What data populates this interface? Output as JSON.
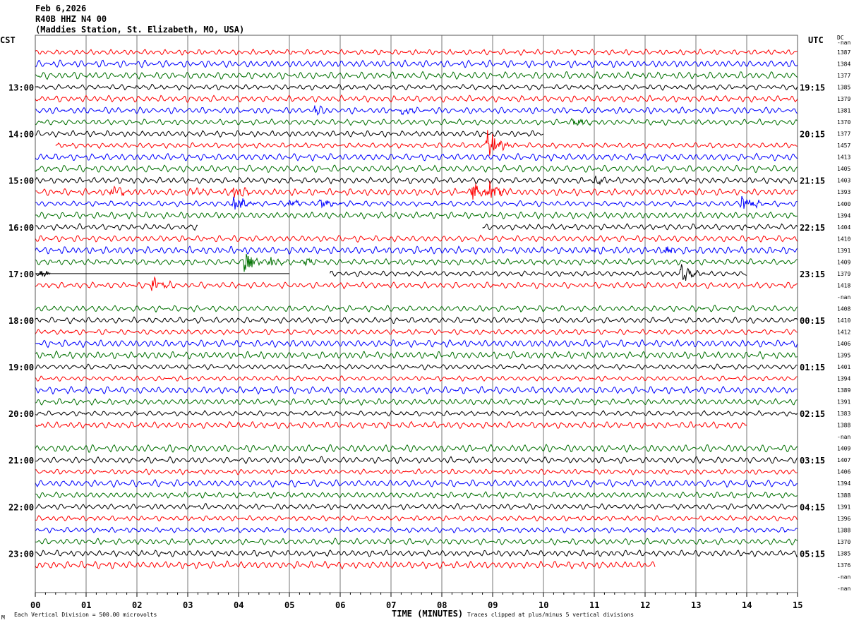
{
  "header": {
    "date": "Feb 6,2026",
    "channel": "R40B HHZ N4 00",
    "station": "(Maddies Station, St. Elizabeth, MO, USA)",
    "left_zone": "CST",
    "right_zone": "UTC",
    "dc_header": "DC",
    "dc_header_sub": "-nan"
  },
  "footer": {
    "scale_note": "Each Vertical Division =  500.00 microvolts",
    "xlabel": "TIME (MINUTES)",
    "clip_note": "Traces clipped at plus/minus 5 vertical divisions",
    "corner_mark": "M"
  },
  "chart_data": {
    "type": "helicorder",
    "xlabel": "TIME (MINUTES)",
    "xlim": [
      0,
      15
    ],
    "x_ticks": [
      "00",
      "01",
      "02",
      "03",
      "04",
      "05",
      "06",
      "07",
      "08",
      "09",
      "10",
      "11",
      "12",
      "13",
      "14",
      "15"
    ],
    "minutes_per_line": 15,
    "color_cycle": [
      "#ff0000",
      "#0000ff",
      "#007000",
      "#000000"
    ],
    "grid": true,
    "traces": [
      {
        "dc": "1387"
      },
      {
        "dc": "1384"
      },
      {
        "dc": "1377"
      },
      {
        "dc": "1385",
        "local": "13:00",
        "utc": "19:15"
      },
      {
        "dc": "1379"
      },
      {
        "dc": "1381",
        "events": [
          [
            5.5,
            1.5
          ],
          [
            7.2,
            1.8
          ]
        ]
      },
      {
        "dc": "1370",
        "events": [
          [
            10.6,
            2.2
          ]
        ]
      },
      {
        "dc": "1377",
        "local": "14:00",
        "utc": "20:15",
        "range": [
          0,
          10.0
        ]
      },
      {
        "dc": "1457",
        "range": [
          0.4,
          15
        ],
        "events": [
          [
            8.9,
            6
          ]
        ]
      },
      {
        "dc": "1413"
      },
      {
        "dc": "1405"
      },
      {
        "dc": "1403",
        "local": "15:00",
        "utc": "21:15",
        "events": [
          [
            11.0,
            1.3
          ]
        ]
      },
      {
        "dc": "1393",
        "events": [
          [
            1.5,
            2.5
          ],
          [
            3.1,
            2.5
          ],
          [
            3.9,
            2.5
          ],
          [
            8.6,
            3.5
          ],
          [
            8.9,
            4
          ]
        ]
      },
      {
        "dc": "1400",
        "events": [
          [
            3.9,
            3.5
          ],
          [
            5.0,
            1.8
          ],
          [
            5.6,
            1.8
          ],
          [
            13.9,
            3.5
          ]
        ]
      },
      {
        "dc": "1394"
      },
      {
        "dc": "1404",
        "local": "16:00",
        "utc": "22:15",
        "range": [
          0,
          3.2
        ],
        "range2": [
          8.8,
          15
        ]
      },
      {
        "dc": "1410"
      },
      {
        "dc": "1391",
        "events": [
          [
            10.9,
            1.5
          ],
          [
            12.4,
            1.6
          ]
        ]
      },
      {
        "dc": "1409",
        "events": [
          [
            4.1,
            4
          ],
          [
            4.6,
            2
          ],
          [
            5.3,
            1.5
          ]
        ]
      },
      {
        "dc": "1379",
        "local": "17:00",
        "utc": "23:15",
        "flat": [
          0,
          5.0
        ],
        "range": [
          0,
          0.3
        ],
        "range2": [
          5.8,
          14.0
        ],
        "events": [
          [
            0.1,
            1.5
          ],
          [
            12.7,
            3.5
          ]
        ]
      },
      {
        "dc": "1418",
        "events": [
          [
            2.3,
            3
          ]
        ]
      },
      {
        "dc": "-nan",
        "range": [
          0,
          0
        ]
      },
      {
        "dc": "1408"
      },
      {
        "dc": "1410",
        "local": "18:00",
        "utc": "00:15"
      },
      {
        "dc": "1412"
      },
      {
        "dc": "1406"
      },
      {
        "dc": "1395"
      },
      {
        "dc": "1401",
        "local": "19:00",
        "utc": "01:15"
      },
      {
        "dc": "1394"
      },
      {
        "dc": "1389"
      },
      {
        "dc": "1391"
      },
      {
        "dc": "1383",
        "local": "20:00",
        "utc": "02:15"
      },
      {
        "dc": "1388",
        "range": [
          0,
          14.0
        ]
      },
      {
        "dc": "-nan",
        "range": [
          0,
          0
        ]
      },
      {
        "dc": "1409"
      },
      {
        "dc": "1407",
        "local": "21:00",
        "utc": "03:15"
      },
      {
        "dc": "1406"
      },
      {
        "dc": "1394"
      },
      {
        "dc": "1388"
      },
      {
        "dc": "1391",
        "local": "22:00",
        "utc": "04:15"
      },
      {
        "dc": "1396"
      },
      {
        "dc": "1388"
      },
      {
        "dc": "1370"
      },
      {
        "dc": "1385",
        "local": "23:00",
        "utc": "05:15"
      },
      {
        "dc": "1376",
        "range": [
          0,
          12.2
        ]
      },
      {
        "dc": "-nan",
        "range": [
          0,
          0
        ]
      },
      {
        "dc": "-nan",
        "range": [
          0,
          0
        ]
      }
    ]
  }
}
